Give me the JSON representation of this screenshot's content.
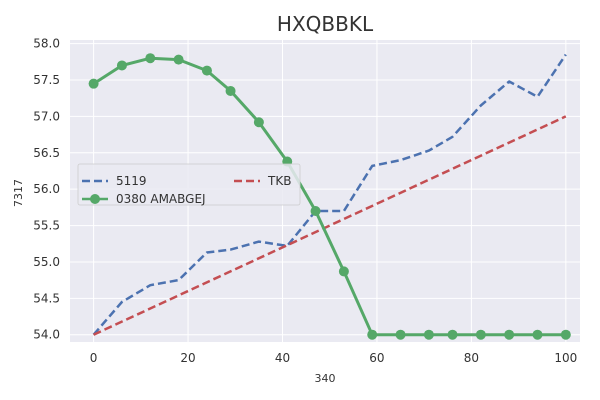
{
  "chart_data": {
    "type": "line",
    "title": "HXQBBKL",
    "xlabel": "340",
    "ylabel": "7317",
    "xlim": [
      -5,
      103
    ],
    "ylim": [
      53.9,
      58.05
    ],
    "x_ticks": [
      0,
      20,
      40,
      60,
      80,
      100
    ],
    "y_ticks": [
      54.0,
      54.5,
      55.0,
      55.5,
      56.0,
      56.5,
      57.0,
      57.5,
      58.0
    ],
    "x_tick_labels": [
      "0",
      "20",
      "40",
      "60",
      "80",
      "100"
    ],
    "y_tick_labels": [
      "54.0",
      "54.5",
      "55.0",
      "55.5",
      "56.0",
      "56.5",
      "57.0",
      "57.5",
      "58.0"
    ],
    "grid": true,
    "legend_position": "center-left",
    "series": [
      {
        "name": "5119",
        "style": "dashed",
        "color": "#4c72b0",
        "x": [
          0,
          6,
          12,
          18,
          24,
          29,
          35,
          41,
          47,
          53,
          59,
          65,
          71,
          76,
          82,
          88,
          94,
          100
        ],
        "y": [
          54.0,
          54.45,
          54.68,
          54.75,
          55.13,
          55.17,
          55.28,
          55.22,
          55.7,
          55.7,
          56.32,
          56.4,
          56.53,
          56.72,
          57.15,
          57.48,
          57.27,
          57.85
        ]
      },
      {
        "name": "TKB",
        "style": "dashed",
        "color": "#c44e52",
        "x": [
          0,
          100
        ],
        "y": [
          54.0,
          57.0
        ]
      },
      {
        "name": "0380 AMABGEJ",
        "style": "solid-markers",
        "color": "#55a868",
        "x": [
          0,
          6,
          12,
          18,
          24,
          29,
          35,
          41,
          47,
          53,
          59,
          65,
          71,
          76,
          82,
          88,
          94,
          100
        ],
        "y": [
          57.45,
          57.7,
          57.8,
          57.78,
          57.63,
          57.35,
          56.92,
          56.38,
          55.7,
          54.87,
          54.0,
          54.0,
          54.0,
          54.0,
          54.0,
          54.0,
          54.0,
          54.0
        ]
      }
    ]
  }
}
